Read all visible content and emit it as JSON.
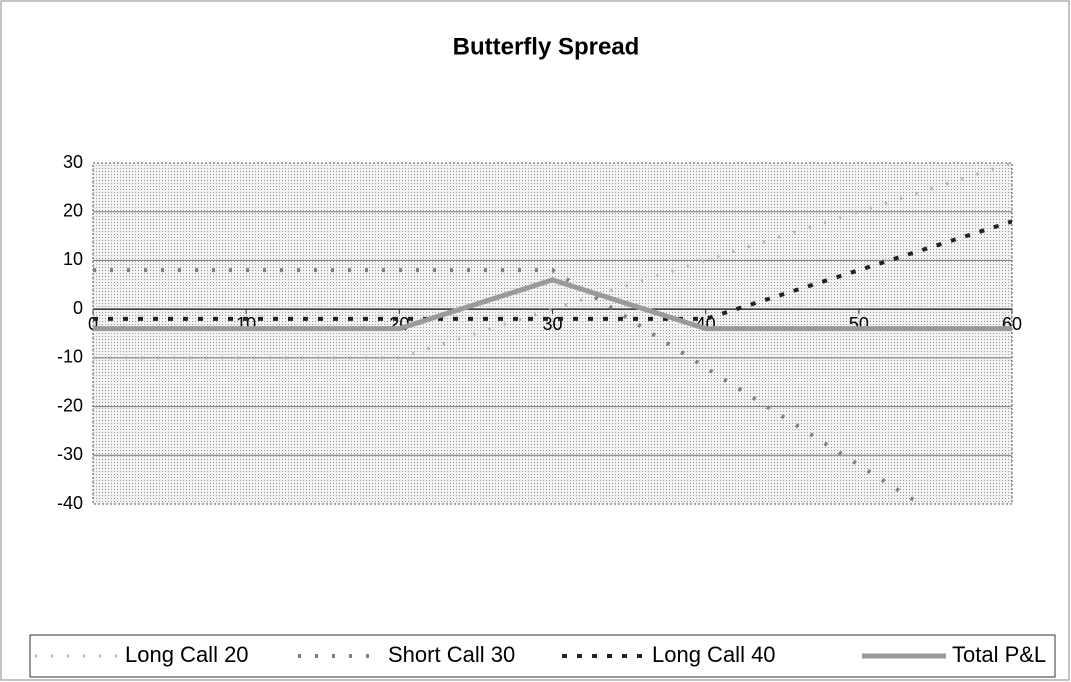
{
  "chart_data": {
    "type": "line",
    "title": "Butterfly Spread",
    "x": [
      0,
      20,
      30,
      40,
      60
    ],
    "series": [
      {
        "name": "Long Call 20",
        "color": "#b0b0b0",
        "values": [
          -10,
          -10,
          0,
          10,
          30
        ]
      },
      {
        "name": "Short Call 30",
        "color": "#808080",
        "values": [
          8,
          8,
          8,
          -12,
          -52
        ]
      },
      {
        "name": "Long Call 40",
        "color": "#222222",
        "values": [
          -2,
          -2,
          -2,
          -2,
          18
        ]
      },
      {
        "name": "Total P&L",
        "color": "#9a9a9a",
        "values": [
          -4,
          -4,
          6,
          -4,
          -4
        ]
      }
    ],
    "xlim": [
      0,
      60
    ],
    "xticks": [
      0,
      10,
      20,
      30,
      40,
      50,
      60
    ],
    "ylim": [
      -40,
      30
    ],
    "yticks": [
      -40,
      -30,
      -20,
      -10,
      0,
      10,
      20,
      30
    ],
    "grid": true,
    "legend": "bottom"
  }
}
